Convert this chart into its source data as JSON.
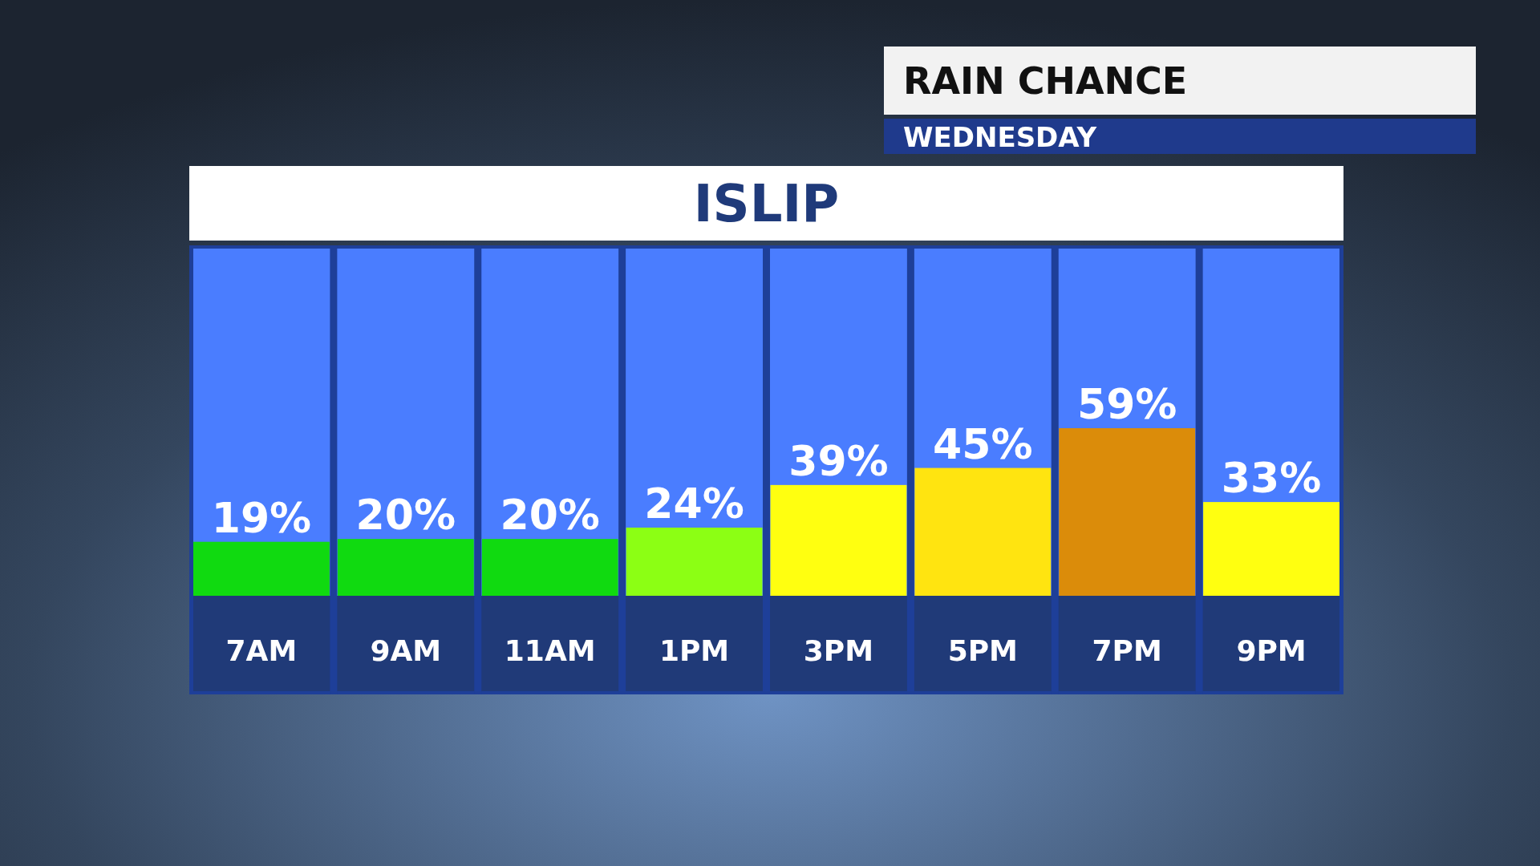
{
  "chart_data": {
    "type": "bar",
    "title": "RAIN CHANCE",
    "subtitle": "WEDNESDAY",
    "annotations": [
      "ISLIP"
    ],
    "categories": [
      "7AM",
      "9AM",
      "11AM",
      "1PM",
      "3PM",
      "5PM",
      "7PM",
      "9PM"
    ],
    "values": [
      19,
      20,
      20,
      24,
      39,
      45,
      59,
      33
    ],
    "colors": [
      "#10da10",
      "#10da10",
      "#10da10",
      "#8cff14",
      "#ffff10",
      "#ffe410",
      "#db8c0a",
      "#ffff10"
    ],
    "value_labels": [
      "19%",
      "20%",
      "20%",
      "24%",
      "39%",
      "45%",
      "59%",
      "33%"
    ],
    "tick_labels": "x"
  }
}
